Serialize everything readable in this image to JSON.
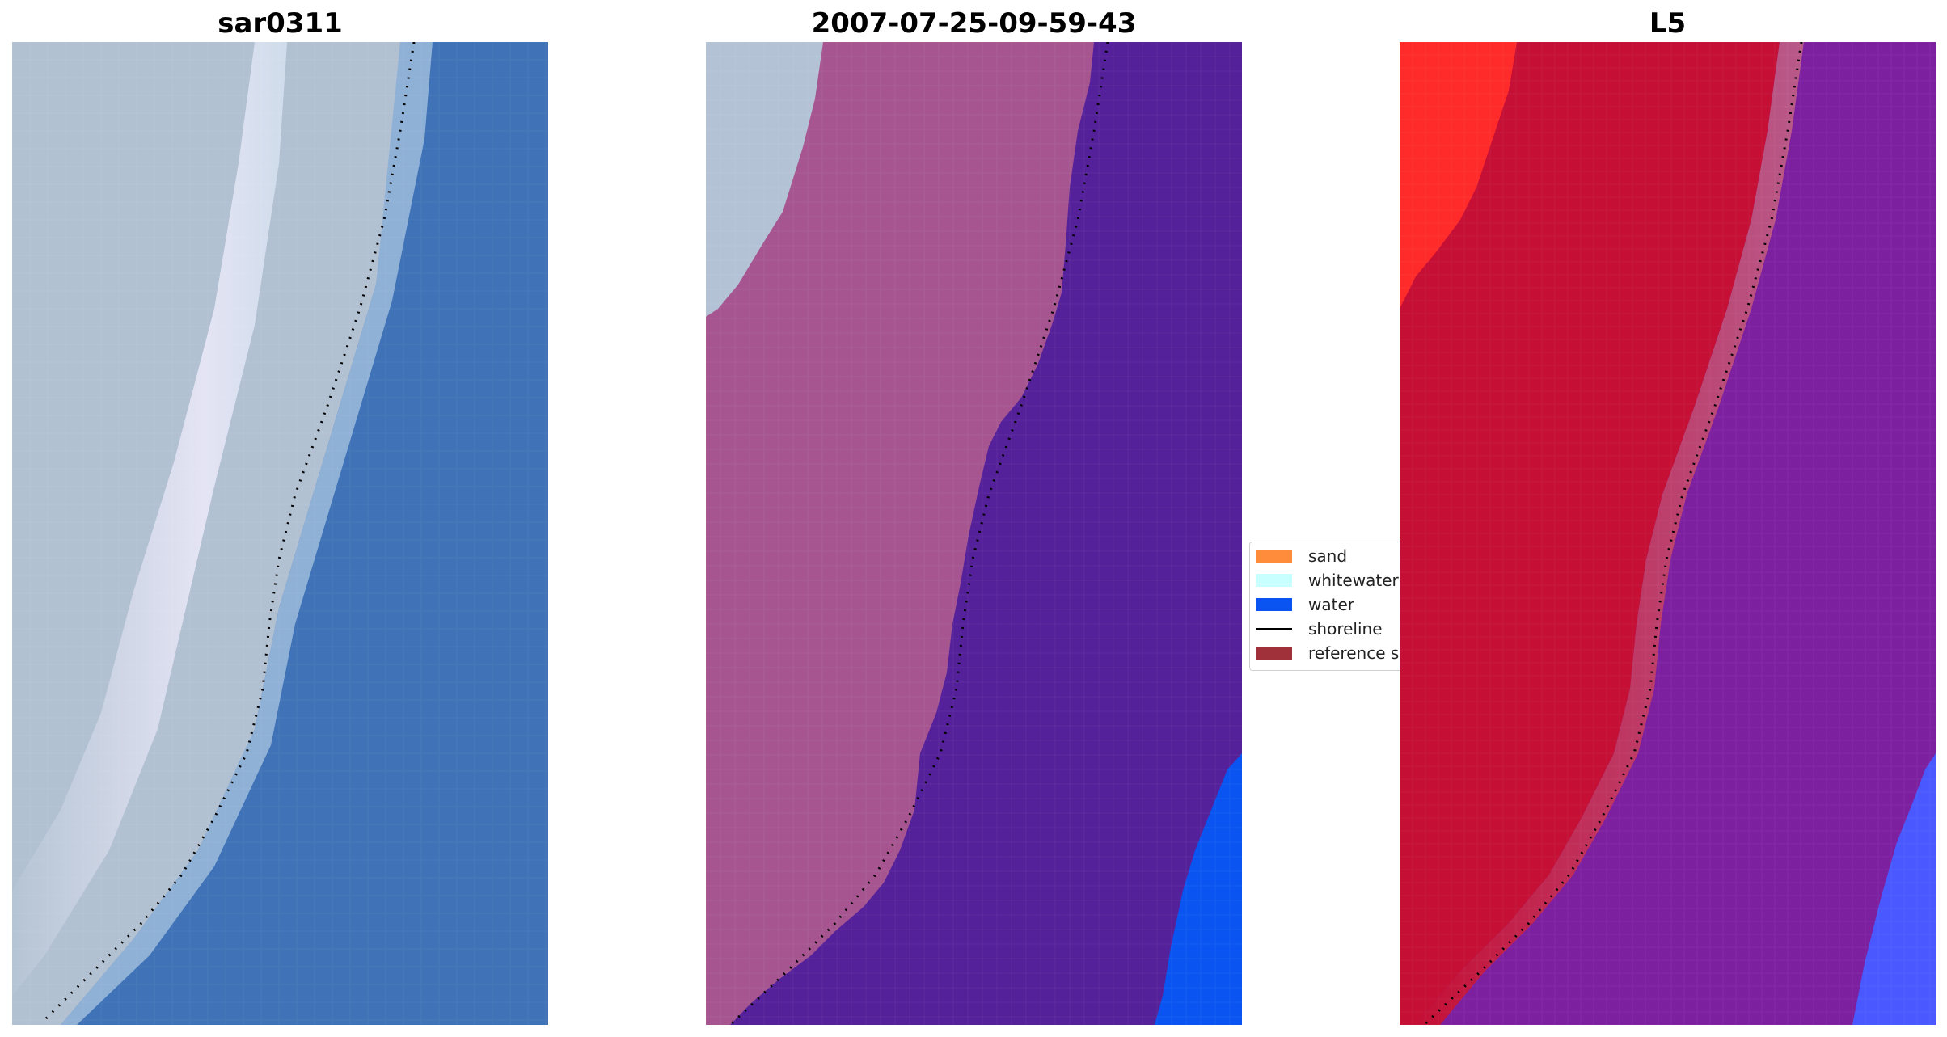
{
  "panels": [
    {
      "id": "rgb",
      "title": "sar0311"
    },
    {
      "id": "classified",
      "title": "2007-07-25-09-59-43"
    },
    {
      "id": "mndwi",
      "title": "L5"
    }
  ],
  "legend": {
    "items": [
      {
        "label": "sand",
        "color": "#ff8c3a",
        "kind": "patch"
      },
      {
        "label": "whitewater",
        "color": "#c8ffff",
        "kind": "patch"
      },
      {
        "label": "water",
        "color": "#0a55f2",
        "kind": "patch"
      },
      {
        "label": "shoreline",
        "color": "#000000",
        "kind": "line"
      },
      {
        "label": "reference s",
        "color": "#a0303a",
        "kind": "patch"
      }
    ]
  },
  "colors": {
    "rgb_land": "#b7c6d6",
    "rgb_surf": "#dfe6f2",
    "rgb_water": "#3f72b6",
    "class_land": "#a65590",
    "class_land_light": "#b3c2d5",
    "class_water": "#55219a",
    "class_blue": "#0a55f2",
    "l5_red": "#c50f35",
    "l5_bright": "#ff2a2a",
    "l5_purple": "#7c20a0",
    "l5_blue": "#4a59ff"
  }
}
